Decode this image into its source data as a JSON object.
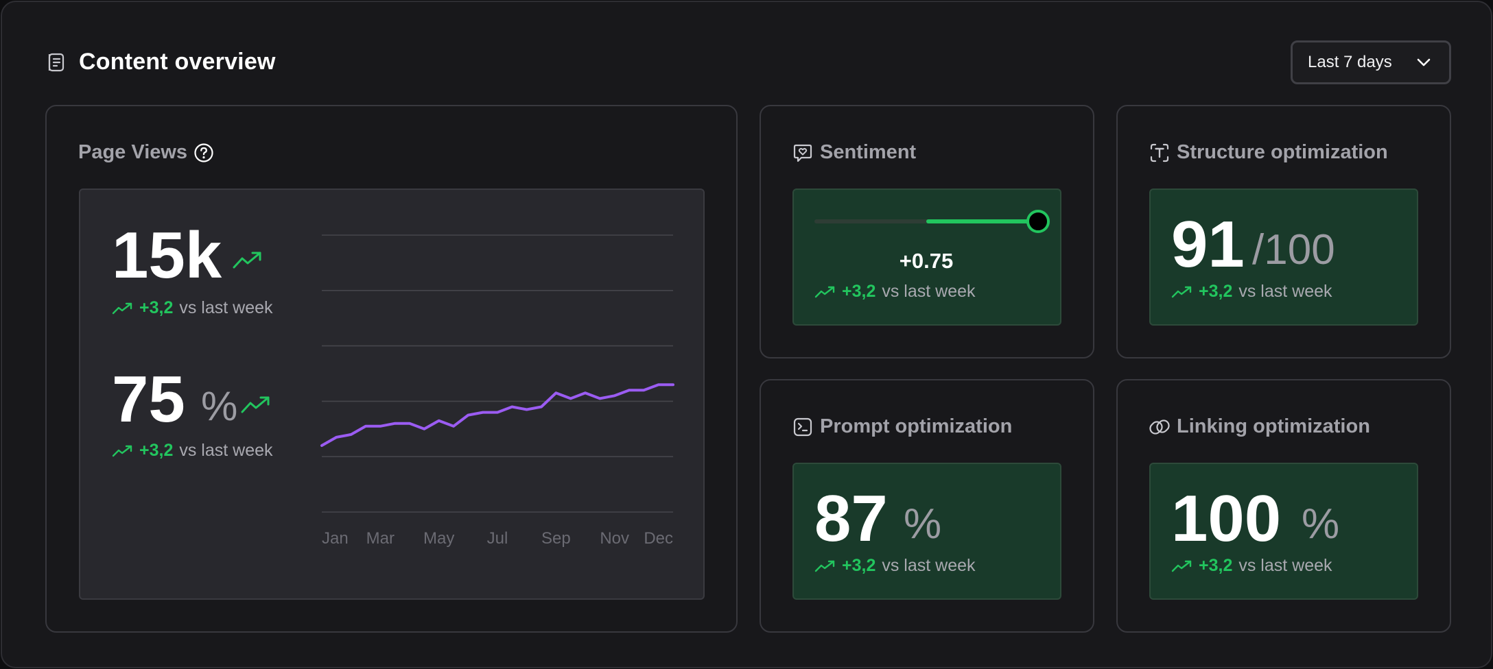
{
  "header": {
    "title": "Content overview",
    "icon": "document-icon",
    "range_select": "Last 7 days"
  },
  "colors": {
    "accent_green": "#22c55e",
    "chart_line": "#9b5cf2",
    "metric_box": "#193a2a"
  },
  "page_views": {
    "title": "Page Views",
    "help_icon": "help-circle-icon",
    "views": {
      "value": "15k",
      "delta": "+3,2",
      "delta_text": "vs last week"
    },
    "rate": {
      "value": "75",
      "unit": "%",
      "delta": "+3,2",
      "delta_text": "vs last week"
    }
  },
  "chart_data": {
    "type": "line",
    "x_tick_labels": [
      "Jan",
      "Mar",
      "May",
      "Jul",
      "Sep",
      "Nov",
      "Dec"
    ],
    "grid": true,
    "y_gridlines": 6,
    "series": [
      {
        "color": "#9b5cf2",
        "values": [
          0.24,
          0.27,
          0.28,
          0.31,
          0.31,
          0.32,
          0.32,
          0.3,
          0.33,
          0.31,
          0.35,
          0.36,
          0.36,
          0.38,
          0.37,
          0.38,
          0.43,
          0.41,
          0.43,
          0.41,
          0.42,
          0.44,
          0.44,
          0.46,
          0.46
        ]
      }
    ]
  },
  "sentiment": {
    "title": "Sentiment",
    "icon": "heart-chat-icon",
    "value": "+0.75",
    "slider_fraction": 1.0,
    "slider_fill_start_fraction": 0.5,
    "delta": "+3,2",
    "delta_text": "vs last week"
  },
  "structure": {
    "title": "Structure optimization",
    "icon": "text-frame-icon",
    "value": "91",
    "unit": "/100",
    "delta": "+3,2",
    "delta_text": "vs last week"
  },
  "prompt": {
    "title": "Prompt optimization",
    "icon": "terminal-icon",
    "value": "87",
    "unit": "%",
    "delta": "+3,2",
    "delta_text": "vs last week"
  },
  "linking": {
    "title": "Linking optimization",
    "icon": "link-icon",
    "value": "100",
    "unit": "%",
    "delta": "+3,2",
    "delta_text": "vs last week"
  }
}
